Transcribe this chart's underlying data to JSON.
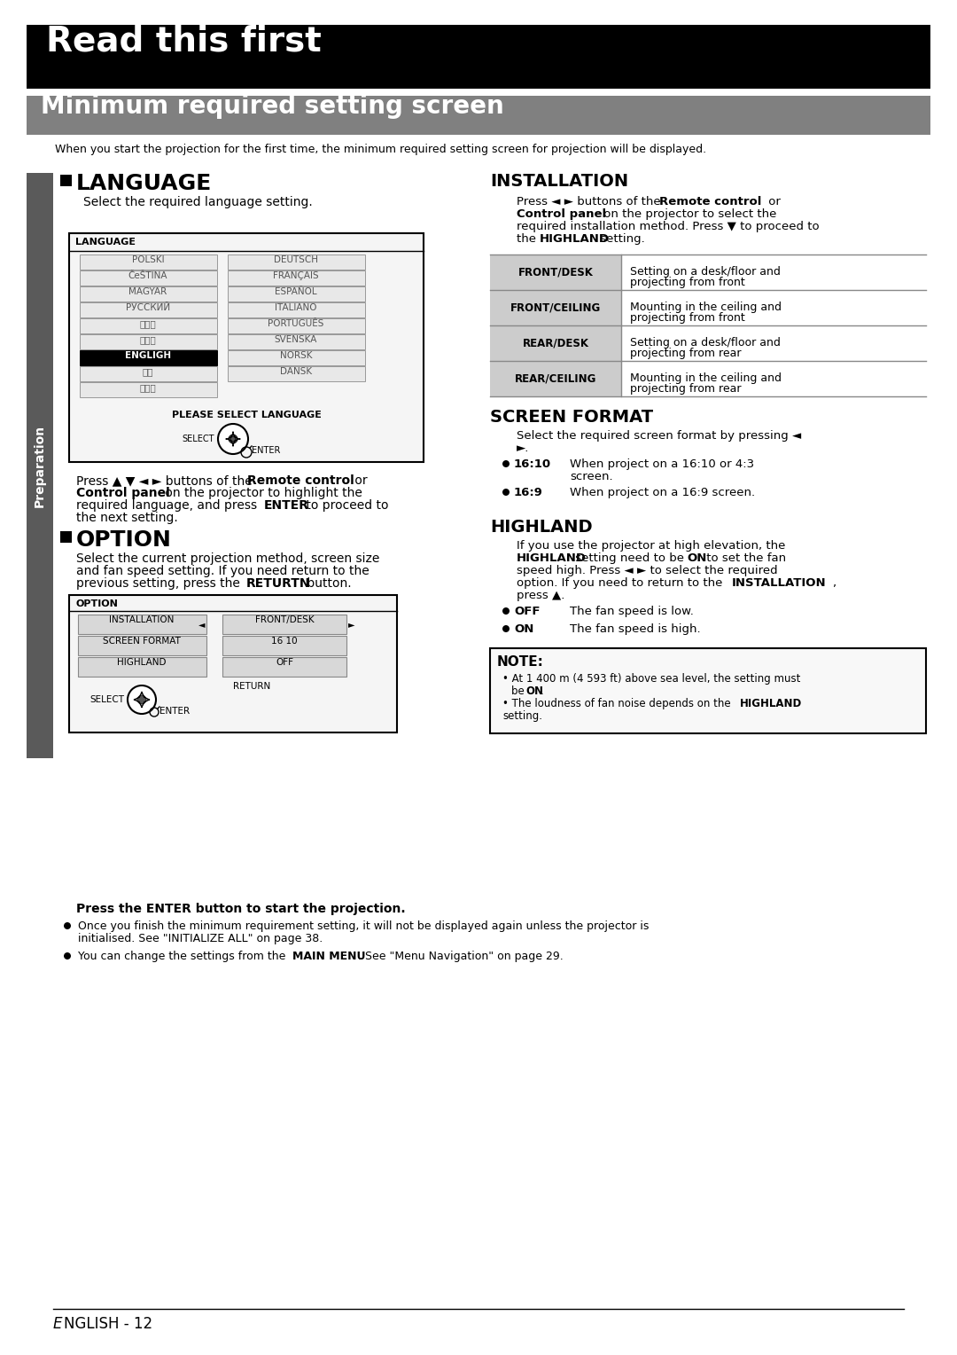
{
  "page_bg": "#ffffff",
  "title_bar_bg": "#000000",
  "title_bar_text": "Read this first",
  "title_bar_text_color": "#ffffff",
  "subtitle_bar_bg": "#808080",
  "subtitle_bar_text": "Minimum required setting screen",
  "subtitle_bar_text_color": "#ffffff",
  "intro_text": "When you start the projection for the first time, the minimum required setting screen for projection will be displayed.",
  "sidebar_bg": "#5a5a5a",
  "sidebar_text": "Preparation",
  "sidebar_text_color": "#ffffff",
  "lang_languages_left": [
    "POLSKI",
    "ČeŠTINA",
    "MAGYAR",
    "РУССКИЙ",
    "ไทย",
    "한국어",
    "ENGLIGH",
    "中文",
    "日本語"
  ],
  "lang_languages_right": [
    "DEUTSCH",
    "FRANÇAIS",
    "ESPAÑOL",
    "ITALIANO",
    "PORTUGUÊS",
    "SVENSKA",
    "NORSK",
    "DANSK"
  ],
  "lang_selected": "ENGLIGH",
  "install_table": [
    [
      "FRONT/DESK",
      "Setting on a desk/floor and\nprojecting from front"
    ],
    [
      "FRONT/CEILING",
      "Mounting in the ceiling and\nprojecting from front"
    ],
    [
      "REAR/DESK",
      "Setting on a desk/floor and\nprojecting from rear"
    ],
    [
      "REAR/CEILING",
      "Mounting in the ceiling and\nprojecting from rear"
    ]
  ],
  "footer_text": "ENGLISH - 12",
  "note_text": "NOTE:"
}
